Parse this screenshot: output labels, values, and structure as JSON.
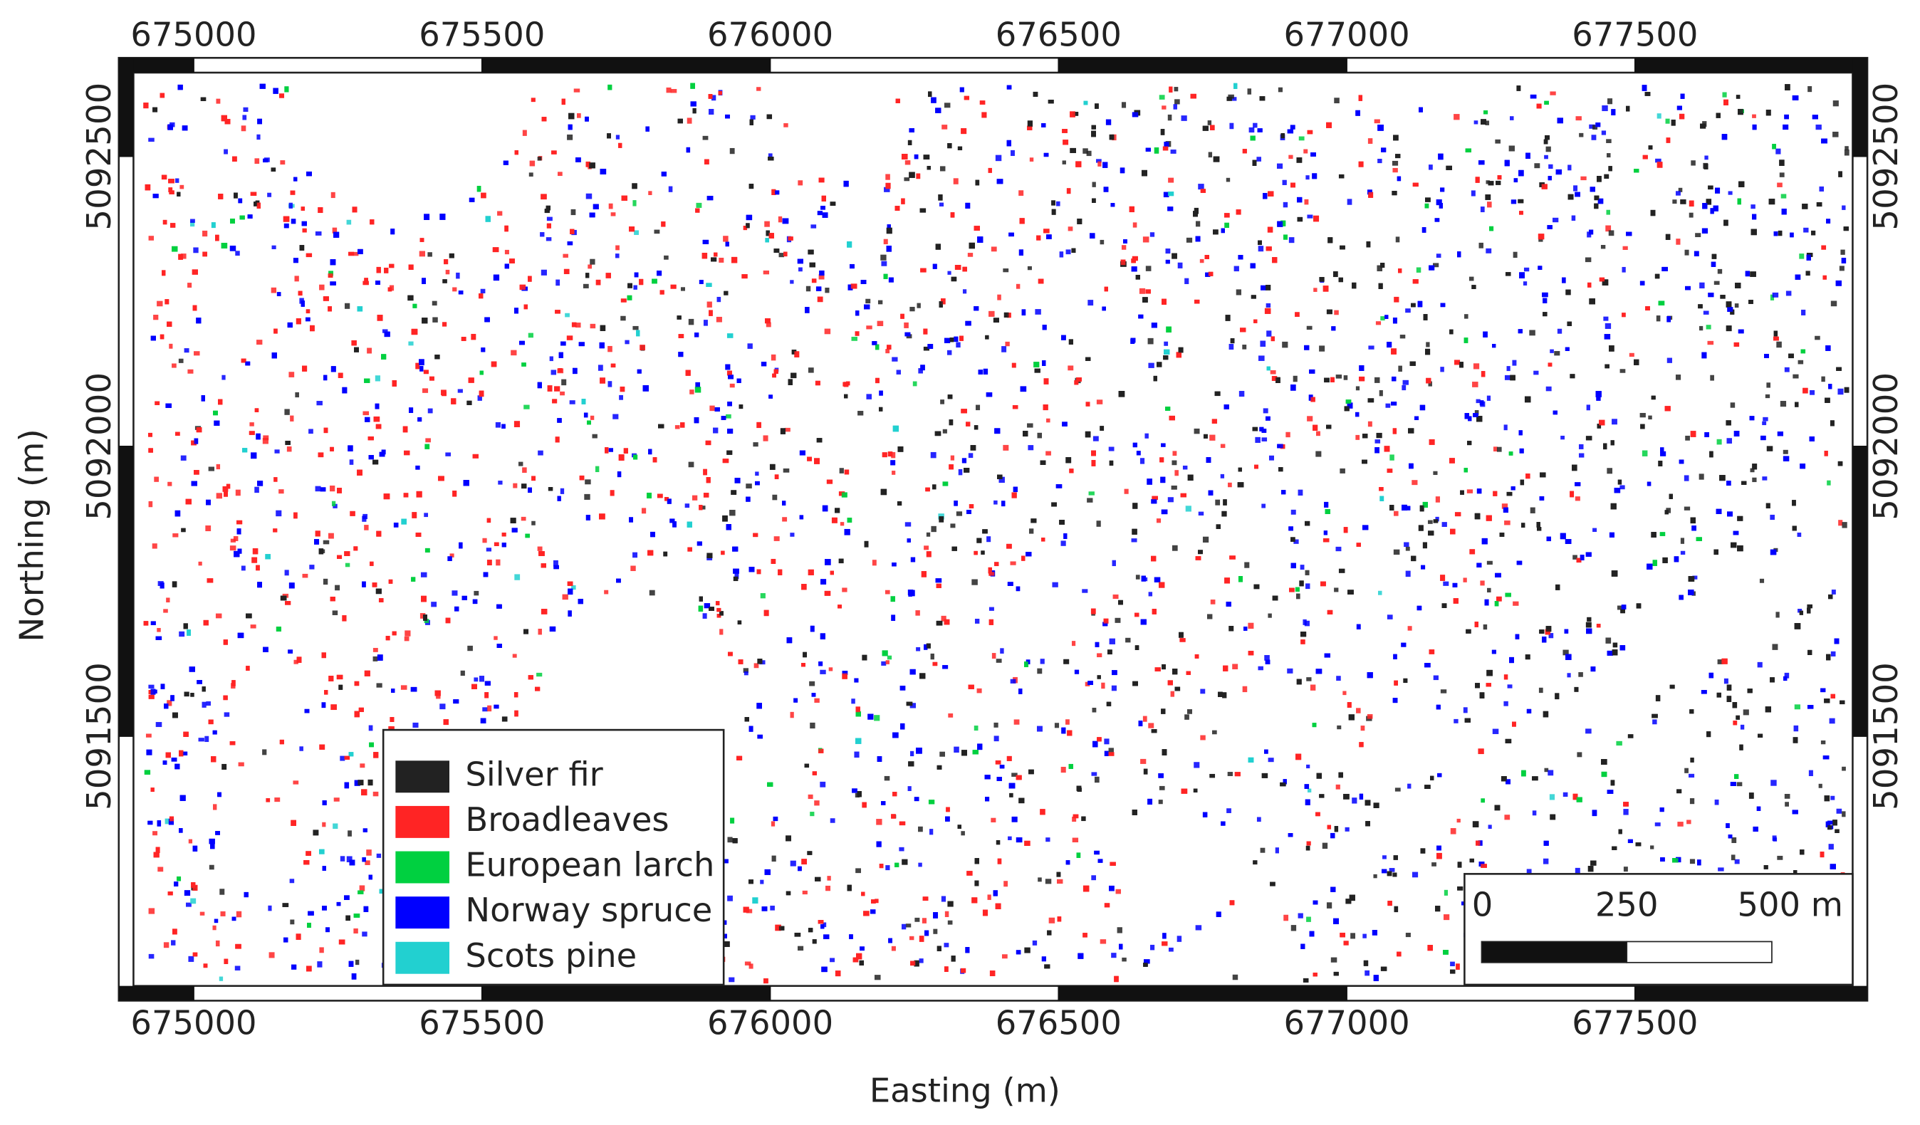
{
  "map": {
    "xlabel": "Easting (m)",
    "ylabel": "Northing (m)",
    "xlim": [
      674870,
      677903
    ],
    "ylim": [
      5091044,
      5092670
    ],
    "xticks": [
      675000,
      675500,
      676000,
      676500,
      677000,
      677500
    ],
    "yticks": [
      5091500,
      5092000,
      5092500
    ],
    "legend": [
      {
        "name": "Silver fir",
        "color": "#222222"
      },
      {
        "name": "Broadleaves",
        "color": "#ff2424"
      },
      {
        "name": "European larch",
        "color": "#00d040"
      },
      {
        "name": "Norway spruce",
        "color": "#0000ff"
      },
      {
        "name": "Scots pine",
        "color": "#22d0d0"
      }
    ],
    "scale_bar": {
      "ticks": [
        0,
        250,
        {
          "value": 500,
          "label": "500 m"
        }
      ]
    }
  }
}
